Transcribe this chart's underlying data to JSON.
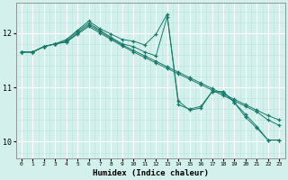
{
  "xlabel": "Humidex (Indice chaleur)",
  "bg_color": "#d4f0ec",
  "grid_color_major": "#ffffff",
  "grid_color_minor": "#b8e4de",
  "line_color": "#1a7a6a",
  "x_ticks": [
    0,
    1,
    2,
    3,
    4,
    5,
    6,
    7,
    8,
    9,
    10,
    11,
    12,
    13,
    14,
    15,
    16,
    17,
    18,
    19,
    20,
    21,
    22,
    23
  ],
  "y_ticks": [
    10,
    11,
    12
  ],
  "ylim": [
    9.7,
    12.55
  ],
  "xlim": [
    -0.5,
    23.5
  ],
  "s1": [
    11.65,
    11.65,
    11.75,
    11.8,
    11.88,
    12.05,
    12.22,
    12.08,
    11.98,
    11.88,
    11.85,
    11.78,
    11.98,
    12.35,
    10.68,
    10.6,
    10.65,
    10.92,
    10.92,
    10.72,
    10.5,
    10.28,
    10.03,
    10.03
  ],
  "s2": [
    11.65,
    11.65,
    11.75,
    11.8,
    11.86,
    12.03,
    12.18,
    12.05,
    11.92,
    11.8,
    11.75,
    11.65,
    11.58,
    12.3,
    10.75,
    10.58,
    10.62,
    10.92,
    10.92,
    10.72,
    10.45,
    10.25,
    10.03,
    10.03
  ],
  "s3": [
    11.65,
    11.65,
    11.75,
    11.8,
    11.84,
    12.0,
    12.15,
    12.03,
    11.9,
    11.78,
    11.68,
    11.58,
    11.48,
    11.38,
    11.28,
    11.18,
    11.08,
    10.98,
    10.88,
    10.78,
    10.68,
    10.58,
    10.48,
    10.4
  ],
  "s4": [
    11.65,
    11.65,
    11.75,
    11.8,
    11.83,
    11.98,
    12.12,
    12.0,
    11.88,
    11.76,
    11.65,
    11.55,
    11.45,
    11.35,
    11.25,
    11.15,
    11.05,
    10.95,
    10.85,
    10.75,
    10.65,
    10.55,
    10.4,
    10.3
  ]
}
